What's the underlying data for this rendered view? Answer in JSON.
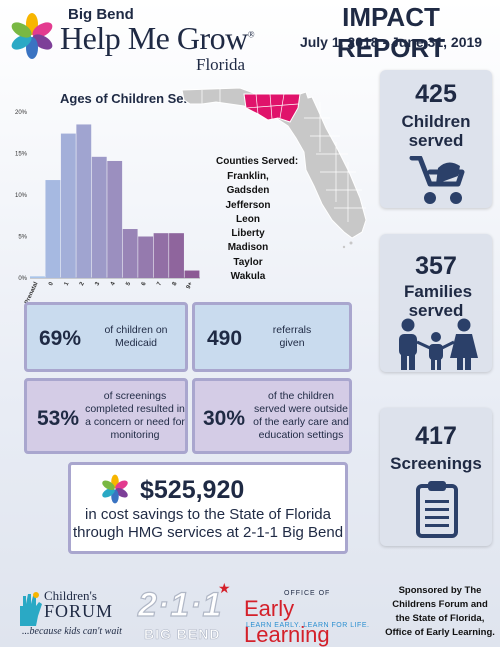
{
  "header": {
    "org_sub": "Big Bend",
    "org_name": "Help Me Grow",
    "org_reg": "®",
    "org_state": "Florida",
    "report_title": "IMPACT REPORT",
    "report_dates": "July 1, 2018 - June 31, 2019"
  },
  "chart_data": {
    "type": "bar",
    "title": "Ages of Children Served",
    "categories": [
      "Prenatal",
      "0",
      "1",
      "2",
      "3",
      "4",
      "5",
      "6",
      "7",
      "8",
      "9+"
    ],
    "values": [
      0.2,
      11.8,
      17.4,
      18.5,
      14.6,
      14.1,
      5.9,
      5.0,
      5.4,
      5.4,
      0.9
    ],
    "ylim": [
      0,
      20
    ],
    "yticks": [
      "0%",
      "5%",
      "10%",
      "15%",
      "20%"
    ],
    "colors": {
      "start": "#a9c4ea",
      "end": "#8c5a94"
    },
    "grid": false,
    "legend": "none"
  },
  "map": {
    "counties_heading": "Counties Served:",
    "counties": [
      "Franklin,",
      "Gadsden",
      "Jefferson",
      "Leon",
      "Liberty",
      "Madison",
      "Taylor",
      "Wakula"
    ],
    "highlight_color": "#e0136b",
    "base_color": "#c8c8c8"
  },
  "stats": [
    {
      "number": "425",
      "label": "Children served",
      "icon": "stroller-icon"
    },
    {
      "number": "357",
      "label": "Families served",
      "icon": "family-icon"
    },
    {
      "number": "417",
      "label": "Screenings",
      "icon": "clipboard-icon"
    }
  ],
  "facts": {
    "medicaid_pct": "69%",
    "medicaid_text": "of children on Medicaid",
    "referrals_num": "490",
    "referrals_text": "referrals given",
    "screenings_pct": "53%",
    "screenings_text": "of screenings completed resulted in a concern or need for monitoring",
    "outside_pct": "30%",
    "outside_text": "of the children served were outside of the early care and education settings"
  },
  "savings": {
    "amount": "$525,920",
    "desc": "in cost savings to the State of Florida through HMG services at 2-1-1 Big Bend"
  },
  "footer": {
    "cf_name": "Children's",
    "cf_name2": "FORUM",
    "cf_tag": "...because kids can't wait",
    "two11": "2·1·1",
    "two11_sub": "BIG BEND",
    "el_office": "OFFICE OF",
    "el_name": "Early Learning",
    "el_tag": "LEARN EARLY. LEARN FOR LIFE.",
    "sponsor": "Sponsored by The Childrens Forum and the State of Florida, Office of Early Learning."
  }
}
